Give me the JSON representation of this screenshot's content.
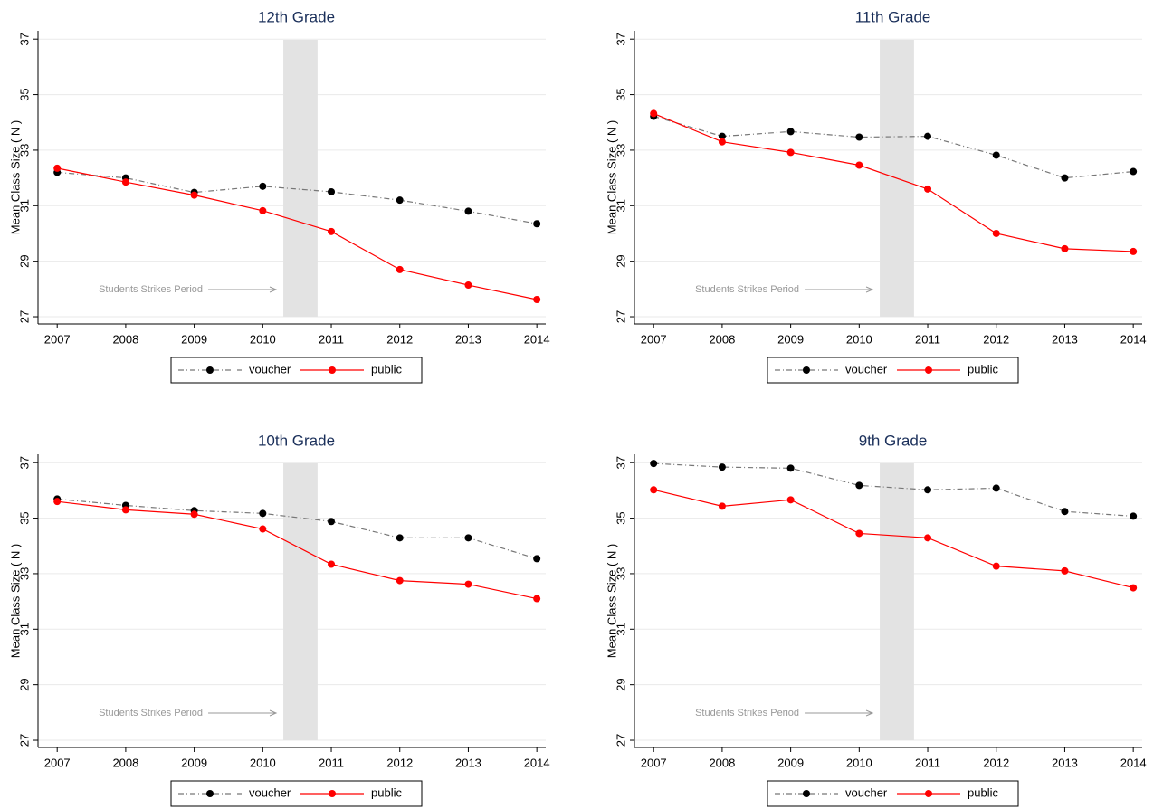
{
  "chart_data": [
    {
      "type": "line",
      "title": "12th Grade",
      "ylabel": "Mean Class Size ( N )",
      "x": [
        2007,
        2008,
        2009,
        2010,
        2011,
        2012,
        2013,
        2014
      ],
      "series": [
        {
          "name": "voucher",
          "color": "#000000",
          "values": [
            32.2,
            32.0,
            31.48,
            31.7,
            31.5,
            31.2,
            30.8,
            30.35
          ]
        },
        {
          "name": "public",
          "color": "#ff0000",
          "values": [
            32.35,
            31.85,
            31.38,
            30.82,
            30.07,
            28.7,
            28.14,
            27.62
          ]
        }
      ],
      "xlim": [
        2006.72,
        2014.13
      ],
      "ylim": [
        26.74,
        37.3
      ],
      "xticks": [
        2007,
        2008,
        2009,
        2010,
        2011,
        2012,
        2013,
        2014
      ],
      "yticks": [
        27,
        29,
        31,
        33,
        35,
        37
      ],
      "grid": true,
      "shaded_xrange": [
        2010.3,
        2010.8
      ],
      "annotation": "Students Strikes Period",
      "legend": "bottom"
    },
    {
      "type": "line",
      "title": "11th Grade",
      "ylabel": "Mean Class Size ( N )",
      "x": [
        2007,
        2008,
        2009,
        2010,
        2011,
        2012,
        2013,
        2014
      ],
      "series": [
        {
          "name": "voucher",
          "color": "#000000",
          "values": [
            34.22,
            33.5,
            33.67,
            33.47,
            33.5,
            32.82,
            32.0,
            32.23
          ]
        },
        {
          "name": "public",
          "color": "#ff0000",
          "values": [
            34.32,
            33.3,
            32.92,
            32.46,
            31.6,
            30.0,
            29.45,
            29.35
          ]
        }
      ],
      "xlim": [
        2006.72,
        2014.13
      ],
      "ylim": [
        26.74,
        37.3
      ],
      "xticks": [
        2007,
        2008,
        2009,
        2010,
        2011,
        2012,
        2013,
        2014
      ],
      "yticks": [
        27,
        29,
        31,
        33,
        35,
        37
      ],
      "grid": true,
      "shaded_xrange": [
        2010.3,
        2010.8
      ],
      "annotation": "Students Strikes Period",
      "legend": "bottom"
    },
    {
      "type": "line",
      "title": "10th Grade",
      "ylabel": "Mean Class Size ( N )",
      "x": [
        2007,
        2008,
        2009,
        2010,
        2011,
        2012,
        2013,
        2014
      ],
      "series": [
        {
          "name": "voucher",
          "color": "#000000",
          "values": [
            35.69,
            35.46,
            35.27,
            35.17,
            34.88,
            34.29,
            34.29,
            33.54
          ]
        },
        {
          "name": "public",
          "color": "#ff0000",
          "values": [
            35.6,
            35.3,
            35.14,
            34.61,
            33.34,
            32.75,
            32.62,
            32.1
          ]
        }
      ],
      "xlim": [
        2006.72,
        2014.13
      ],
      "ylim": [
        26.74,
        37.3
      ],
      "xticks": [
        2007,
        2008,
        2009,
        2010,
        2011,
        2012,
        2013,
        2014
      ],
      "yticks": [
        27,
        29,
        31,
        33,
        35,
        37
      ],
      "grid": true,
      "shaded_xrange": [
        2010.3,
        2010.8
      ],
      "annotation": "Students Strikes Period",
      "legend": "bottom"
    },
    {
      "type": "line",
      "title": "9th Grade",
      "ylabel": "Mean Class Size ( N )",
      "x": [
        2007,
        2008,
        2009,
        2010,
        2011,
        2012,
        2013,
        2014
      ],
      "series": [
        {
          "name": "voucher",
          "color": "#000000",
          "values": [
            36.97,
            36.84,
            36.8,
            36.18,
            36.02,
            36.08,
            35.24,
            35.07
          ]
        },
        {
          "name": "public",
          "color": "#ff0000",
          "values": [
            36.02,
            35.43,
            35.66,
            34.45,
            34.29,
            33.27,
            33.1,
            32.49
          ]
        }
      ],
      "xlim": [
        2006.72,
        2014.13
      ],
      "ylim": [
        26.74,
        37.3
      ],
      "xticks": [
        2007,
        2008,
        2009,
        2010,
        2011,
        2012,
        2013,
        2014
      ],
      "yticks": [
        27,
        29,
        31,
        33,
        35,
        37
      ],
      "grid": true,
      "shaded_xrange": [
        2010.3,
        2010.8
      ],
      "annotation": "Students Strikes Period",
      "legend": "bottom"
    }
  ]
}
